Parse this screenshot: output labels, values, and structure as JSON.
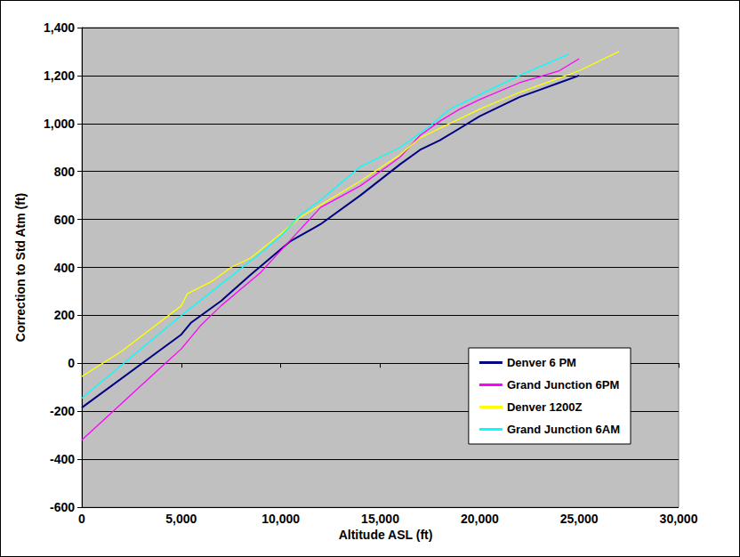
{
  "chart_data": {
    "type": "line",
    "x_label": "Altitude ASL (ft)",
    "y_label": "Correction to Std Atm (ft)",
    "xlim": [
      0,
      30000
    ],
    "xticks": [
      0,
      5000,
      10000,
      15000,
      20000,
      25000,
      30000
    ],
    "ylim": [
      -600,
      1400
    ],
    "yticks": [
      -600,
      -400,
      -200,
      0,
      200,
      400,
      600,
      800,
      1000,
      1200,
      1400
    ],
    "grid": true,
    "legend": "right",
    "series": [
      {
        "name": "Denver 6 PM",
        "color": "#000080",
        "line_style": "solid",
        "x": [
          0,
          5000,
          5500,
          7000,
          8500,
          10500,
          12000,
          14000,
          16000,
          17000,
          18000,
          20000,
          21000,
          22000,
          23000,
          24000,
          25000
        ],
        "values": [
          -185,
          120,
          170,
          260,
          370,
          510,
          580,
          700,
          830,
          890,
          930,
          1030,
          1070,
          1110,
          1140,
          1170,
          1200
        ]
      },
      {
        "name": "Grand Junction 6PM",
        "color": "#ff00ff",
        "line_style": "solid",
        "x": [
          0,
          4200,
          5000,
          6000,
          7000,
          8000,
          9000,
          10000,
          11000,
          12000,
          14000,
          16000,
          17000,
          18000,
          19000,
          20000,
          22000,
          24000,
          25000
        ],
        "values": [
          -320,
          0,
          60,
          160,
          240,
          310,
          380,
          470,
          560,
          650,
          740,
          860,
          950,
          1010,
          1060,
          1100,
          1170,
          1220,
          1270
        ]
      },
      {
        "name": "Denver 1200Z",
        "color": "#ffff00",
        "line_style": "solid",
        "x": [
          0,
          2000,
          5000,
          5300,
          6500,
          7500,
          8500,
          10000,
          11000,
          12000,
          14000,
          16000,
          17000,
          18000,
          20000,
          22000,
          24000,
          25000,
          27000
        ],
        "values": [
          -55,
          50,
          240,
          290,
          340,
          400,
          440,
          540,
          610,
          660,
          760,
          870,
          940,
          980,
          1060,
          1130,
          1190,
          1220,
          1300
        ]
      },
      {
        "name": "Grand Junction 6AM",
        "color": "#00ffff",
        "line_style": "solid",
        "x": [
          0,
          5000,
          7000,
          9000,
          10000,
          11000,
          12000,
          14000,
          16000,
          17500,
          18500,
          20000,
          22000,
          24500
        ],
        "values": [
          -145,
          200,
          330,
          460,
          530,
          620,
          680,
          820,
          900,
          990,
          1060,
          1120,
          1200,
          1290
        ]
      }
    ]
  }
}
